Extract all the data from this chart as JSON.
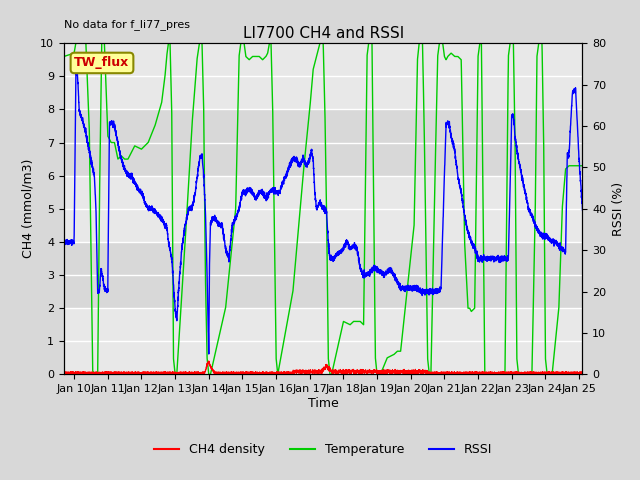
{
  "title": "LI7700 CH4 and RSSI",
  "top_left_text": "No data for f_li77_pres",
  "xlabel": "Time",
  "ylabel_left": "CH4 (mmol/m3)",
  "ylabel_right": "RSSI (%)",
  "legend_label": "TW_flux",
  "line_labels": [
    "CH4 density",
    "Temperature",
    "RSSI"
  ],
  "line_colors": [
    "#ff0000",
    "#00cc00",
    "#0000ff"
  ],
  "ylim_left": [
    0.0,
    10.0
  ],
  "ylim_right": [
    0,
    80
  ],
  "bg_color": "#d8d8d8",
  "band_light": "#e8e8e8",
  "title_fontsize": 11,
  "label_fontsize": 9,
  "tick_fontsize": 8,
  "x_start": 9.7,
  "x_end": 25.1,
  "x_ticks": [
    10,
    11,
    12,
    13,
    14,
    15,
    16,
    17,
    18,
    19,
    20,
    21,
    22,
    23,
    24,
    25
  ],
  "x_tick_labels": [
    "Jan 10",
    "Jan 11",
    "Jan 12",
    "Jan 13",
    "Jan 14",
    "Jan 15",
    "Jan 16",
    "Jan 17",
    "Jan 18",
    "Jan 19",
    "Jan 20",
    "Jan 21",
    "Jan 22",
    "Jan 23",
    "Jan 24",
    "Jan 25"
  ],
  "temp_kp": [
    [
      9.7,
      9.6
    ],
    [
      10.0,
      9.7
    ],
    [
      10.05,
      10.0
    ],
    [
      10.35,
      10.0
    ],
    [
      10.45,
      7.5
    ],
    [
      10.55,
      0.1
    ],
    [
      10.65,
      0.0
    ],
    [
      10.7,
      0.0
    ],
    [
      10.75,
      5.0
    ],
    [
      10.82,
      10.0
    ],
    [
      10.9,
      10.0
    ],
    [
      11.0,
      7.2
    ],
    [
      11.1,
      7.0
    ],
    [
      11.2,
      7.0
    ],
    [
      11.3,
      6.5
    ],
    [
      11.4,
      6.6
    ],
    [
      11.5,
      6.5
    ],
    [
      11.6,
      6.5
    ],
    [
      11.7,
      6.7
    ],
    [
      11.8,
      6.9
    ],
    [
      12.0,
      6.8
    ],
    [
      12.2,
      7.0
    ],
    [
      12.4,
      7.5
    ],
    [
      12.6,
      8.2
    ],
    [
      12.7,
      9.0
    ],
    [
      12.75,
      9.6
    ],
    [
      12.8,
      10.0
    ],
    [
      12.85,
      10.0
    ],
    [
      12.9,
      8.0
    ],
    [
      12.95,
      0.5
    ],
    [
      13.0,
      0.0
    ],
    [
      13.05,
      0.0
    ],
    [
      13.3,
      4.0
    ],
    [
      13.5,
      7.5
    ],
    [
      13.65,
      9.5
    ],
    [
      13.72,
      10.0
    ],
    [
      13.8,
      10.0
    ],
    [
      13.85,
      8.0
    ],
    [
      13.9,
      3.0
    ],
    [
      13.95,
      0.5
    ],
    [
      14.0,
      0.0
    ],
    [
      14.05,
      0.0
    ],
    [
      14.5,
      2.0
    ],
    [
      14.8,
      5.0
    ],
    [
      14.9,
      9.6
    ],
    [
      14.95,
      10.0
    ],
    [
      15.05,
      10.0
    ],
    [
      15.1,
      9.6
    ],
    [
      15.2,
      9.5
    ],
    [
      15.3,
      9.6
    ],
    [
      15.5,
      9.6
    ],
    [
      15.6,
      9.5
    ],
    [
      15.7,
      9.6
    ],
    [
      15.75,
      9.7
    ],
    [
      15.8,
      10.0
    ],
    [
      15.85,
      10.0
    ],
    [
      15.9,
      8.0
    ],
    [
      16.0,
      0.5
    ],
    [
      16.05,
      0.0
    ],
    [
      16.5,
      2.5
    ],
    [
      16.8,
      6.0
    ],
    [
      17.0,
      8.0
    ],
    [
      17.1,
      9.2
    ],
    [
      17.2,
      9.6
    ],
    [
      17.3,
      10.0
    ],
    [
      17.4,
      10.0
    ],
    [
      17.45,
      8.0
    ],
    [
      17.5,
      5.0
    ],
    [
      17.55,
      0.5
    ],
    [
      17.6,
      0.0
    ],
    [
      17.65,
      0.0
    ],
    [
      18.0,
      1.6
    ],
    [
      18.2,
      1.5
    ],
    [
      18.3,
      1.6
    ],
    [
      18.5,
      1.6
    ],
    [
      18.6,
      1.5
    ],
    [
      18.7,
      9.6
    ],
    [
      18.75,
      10.0
    ],
    [
      18.85,
      10.0
    ],
    [
      18.9,
      5.0
    ],
    [
      18.95,
      0.5
    ],
    [
      19.0,
      0.0
    ],
    [
      19.1,
      0.0
    ],
    [
      19.3,
      0.5
    ],
    [
      19.5,
      0.6
    ],
    [
      19.6,
      0.7
    ],
    [
      19.7,
      0.7
    ],
    [
      20.1,
      4.5
    ],
    [
      20.2,
      9.5
    ],
    [
      20.25,
      10.0
    ],
    [
      20.35,
      10.0
    ],
    [
      20.4,
      7.5
    ],
    [
      20.5,
      0.5
    ],
    [
      20.55,
      0.0
    ],
    [
      20.6,
      0.0
    ],
    [
      20.7,
      5.0
    ],
    [
      20.8,
      9.6
    ],
    [
      20.85,
      10.0
    ],
    [
      20.95,
      10.0
    ],
    [
      21.0,
      9.6
    ],
    [
      21.05,
      9.5
    ],
    [
      21.1,
      9.6
    ],
    [
      21.2,
      9.7
    ],
    [
      21.3,
      9.6
    ],
    [
      21.4,
      9.6
    ],
    [
      21.5,
      9.5
    ],
    [
      21.6,
      4.0
    ],
    [
      21.7,
      2.0
    ],
    [
      21.75,
      2.0
    ],
    [
      21.8,
      1.9
    ],
    [
      21.9,
      2.0
    ],
    [
      22.0,
      9.6
    ],
    [
      22.05,
      10.0
    ],
    [
      22.1,
      10.0
    ],
    [
      22.15,
      5.0
    ],
    [
      22.2,
      0.0
    ],
    [
      22.25,
      0.0
    ],
    [
      22.5,
      0.0
    ],
    [
      22.6,
      0.0
    ],
    [
      22.7,
      0.0
    ],
    [
      22.8,
      0.0
    ],
    [
      22.85,
      5.0
    ],
    [
      22.9,
      9.6
    ],
    [
      22.95,
      10.0
    ],
    [
      23.0,
      10.0
    ],
    [
      23.05,
      10.0
    ],
    [
      23.1,
      7.0
    ],
    [
      23.15,
      0.5
    ],
    [
      23.2,
      0.0
    ],
    [
      23.3,
      0.0
    ],
    [
      23.6,
      0.0
    ],
    [
      23.7,
      5.0
    ],
    [
      23.75,
      9.6
    ],
    [
      23.8,
      10.0
    ],
    [
      23.9,
      10.0
    ],
    [
      23.95,
      7.0
    ],
    [
      24.0,
      0.5
    ],
    [
      24.05,
      0.0
    ],
    [
      24.2,
      0.0
    ],
    [
      24.4,
      2.0
    ],
    [
      24.5,
      5.0
    ],
    [
      24.6,
      6.2
    ],
    [
      24.7,
      6.3
    ],
    [
      25.1,
      6.3
    ]
  ],
  "rssi_kp": [
    [
      9.7,
      4.0
    ],
    [
      10.0,
      4.0
    ],
    [
      10.05,
      9.1
    ],
    [
      10.1,
      9.1
    ],
    [
      10.15,
      8.0
    ],
    [
      10.2,
      7.8
    ],
    [
      10.3,
      7.5
    ],
    [
      10.4,
      7.0
    ],
    [
      10.5,
      6.5
    ],
    [
      10.6,
      6.0
    ],
    [
      10.65,
      5.0
    ],
    [
      10.7,
      2.5
    ],
    [
      10.75,
      2.5
    ],
    [
      10.8,
      3.2
    ],
    [
      10.9,
      2.6
    ],
    [
      11.0,
      2.5
    ],
    [
      11.05,
      7.6
    ],
    [
      11.1,
      7.6
    ],
    [
      11.2,
      7.5
    ],
    [
      11.3,
      7.0
    ],
    [
      11.4,
      6.5
    ],
    [
      11.5,
      6.2
    ],
    [
      11.6,
      6.0
    ],
    [
      11.7,
      6.0
    ],
    [
      11.8,
      5.8
    ],
    [
      11.9,
      5.6
    ],
    [
      12.0,
      5.5
    ],
    [
      12.1,
      5.2
    ],
    [
      12.2,
      5.0
    ],
    [
      12.3,
      5.0
    ],
    [
      12.5,
      4.8
    ],
    [
      12.6,
      4.7
    ],
    [
      12.7,
      4.5
    ],
    [
      12.75,
      4.5
    ],
    [
      12.8,
      4.0
    ],
    [
      12.9,
      3.5
    ],
    [
      13.0,
      2.0
    ],
    [
      13.05,
      1.6
    ],
    [
      13.1,
      2.5
    ],
    [
      13.2,
      3.8
    ],
    [
      13.3,
      4.5
    ],
    [
      13.4,
      5.0
    ],
    [
      13.5,
      5.0
    ],
    [
      13.6,
      5.5
    ],
    [
      13.7,
      6.3
    ],
    [
      13.75,
      6.6
    ],
    [
      13.8,
      6.6
    ],
    [
      13.85,
      6.0
    ],
    [
      13.9,
      5.0
    ],
    [
      13.95,
      3.0
    ],
    [
      14.0,
      0.6
    ],
    [
      14.02,
      3.2
    ],
    [
      14.05,
      4.5
    ],
    [
      14.1,
      4.7
    ],
    [
      14.15,
      4.7
    ],
    [
      14.2,
      4.7
    ],
    [
      14.3,
      4.5
    ],
    [
      14.4,
      4.5
    ],
    [
      14.5,
      3.8
    ],
    [
      14.6,
      3.5
    ],
    [
      14.7,
      4.5
    ],
    [
      14.8,
      4.7
    ],
    [
      14.9,
      5.0
    ],
    [
      15.0,
      5.5
    ],
    [
      15.1,
      5.5
    ],
    [
      15.2,
      5.6
    ],
    [
      15.3,
      5.5
    ],
    [
      15.4,
      5.3
    ],
    [
      15.5,
      5.5
    ],
    [
      15.6,
      5.5
    ],
    [
      15.7,
      5.3
    ],
    [
      15.8,
      5.5
    ],
    [
      15.9,
      5.6
    ],
    [
      16.0,
      5.5
    ],
    [
      16.05,
      5.5
    ],
    [
      16.1,
      5.5
    ],
    [
      16.2,
      5.8
    ],
    [
      16.3,
      6.0
    ],
    [
      16.4,
      6.3
    ],
    [
      16.5,
      6.5
    ],
    [
      16.6,
      6.5
    ],
    [
      16.7,
      6.3
    ],
    [
      16.8,
      6.5
    ],
    [
      16.9,
      6.3
    ],
    [
      17.0,
      6.5
    ],
    [
      17.05,
      6.8
    ],
    [
      17.1,
      6.5
    ],
    [
      17.15,
      5.5
    ],
    [
      17.2,
      5.0
    ],
    [
      17.3,
      5.2
    ],
    [
      17.4,
      5.0
    ],
    [
      17.5,
      4.9
    ],
    [
      17.55,
      4.0
    ],
    [
      17.6,
      3.5
    ],
    [
      17.7,
      3.5
    ],
    [
      17.8,
      3.6
    ],
    [
      17.9,
      3.7
    ],
    [
      18.0,
      3.8
    ],
    [
      18.1,
      4.0
    ],
    [
      18.2,
      3.8
    ],
    [
      18.3,
      3.9
    ],
    [
      18.4,
      3.8
    ],
    [
      18.5,
      3.2
    ],
    [
      18.6,
      3.0
    ],
    [
      18.7,
      3.0
    ],
    [
      18.8,
      3.1
    ],
    [
      18.9,
      3.2
    ],
    [
      19.0,
      3.2
    ],
    [
      19.1,
      3.1
    ],
    [
      19.2,
      3.0
    ],
    [
      19.3,
      3.1
    ],
    [
      19.4,
      3.2
    ],
    [
      19.5,
      3.0
    ],
    [
      19.6,
      2.8
    ],
    [
      19.7,
      2.6
    ],
    [
      19.8,
      2.6
    ],
    [
      19.9,
      2.6
    ],
    [
      20.0,
      2.6
    ],
    [
      20.1,
      2.6
    ],
    [
      20.2,
      2.6
    ],
    [
      20.3,
      2.5
    ],
    [
      20.4,
      2.5
    ],
    [
      20.5,
      2.5
    ],
    [
      20.6,
      2.5
    ],
    [
      20.7,
      2.5
    ],
    [
      20.8,
      2.5
    ],
    [
      20.9,
      2.6
    ],
    [
      21.0,
      6.0
    ],
    [
      21.05,
      7.5
    ],
    [
      21.1,
      7.6
    ],
    [
      21.15,
      7.5
    ],
    [
      21.2,
      7.2
    ],
    [
      21.3,
      6.8
    ],
    [
      21.4,
      6.0
    ],
    [
      21.5,
      5.5
    ],
    [
      21.6,
      4.8
    ],
    [
      21.7,
      4.3
    ],
    [
      21.8,
      4.0
    ],
    [
      21.9,
      3.8
    ],
    [
      22.0,
      3.5
    ],
    [
      22.1,
      3.5
    ],
    [
      22.2,
      3.5
    ],
    [
      22.3,
      3.5
    ],
    [
      22.5,
      3.5
    ],
    [
      22.7,
      3.5
    ],
    [
      22.9,
      3.5
    ],
    [
      23.0,
      7.8
    ],
    [
      23.05,
      7.8
    ],
    [
      23.1,
      7.2
    ],
    [
      23.15,
      6.8
    ],
    [
      23.2,
      6.5
    ],
    [
      23.3,
      6.0
    ],
    [
      23.4,
      5.5
    ],
    [
      23.5,
      5.0
    ],
    [
      23.6,
      4.8
    ],
    [
      23.7,
      4.5
    ],
    [
      23.8,
      4.3
    ],
    [
      23.9,
      4.2
    ],
    [
      24.0,
      4.2
    ],
    [
      24.1,
      4.1
    ],
    [
      24.2,
      4.0
    ],
    [
      24.3,
      4.0
    ],
    [
      24.5,
      3.8
    ],
    [
      24.6,
      3.7
    ],
    [
      24.65,
      6.6
    ],
    [
      24.7,
      6.6
    ],
    [
      24.8,
      8.5
    ],
    [
      24.9,
      8.6
    ],
    [
      25.0,
      6.5
    ],
    [
      25.1,
      5.0
    ]
  ]
}
